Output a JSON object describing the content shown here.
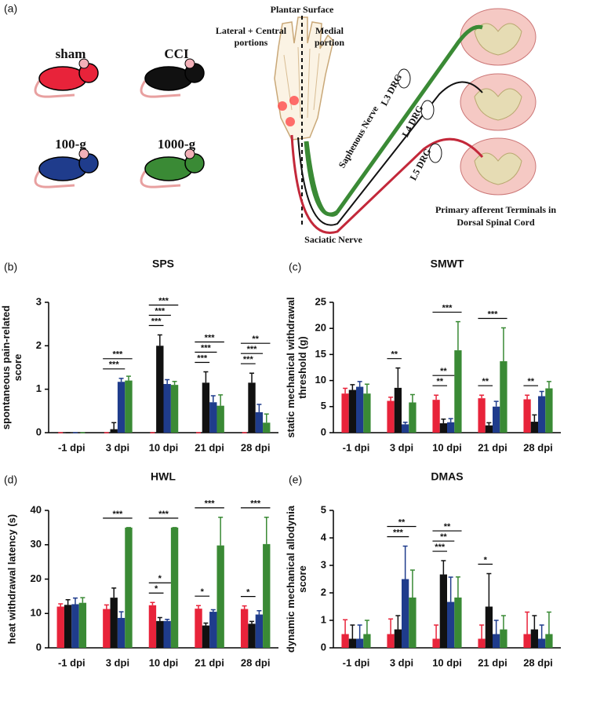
{
  "diagram": {
    "panel": "(a)",
    "plantar": "Plantar Surface",
    "lateral": [
      "Lateral + Central",
      "portions"
    ],
    "medial": [
      "Medial",
      "portion"
    ],
    "drg": [
      "L3 DRG",
      "L4 DRG",
      "L5 DRG"
    ],
    "saphenous": "Saphenous Nerve",
    "sciatic": "Saciatic Nerve",
    "terminals": [
      "Primary afferent Terminals in",
      "Dorsal Spinal Cord"
    ]
  },
  "groups": [
    {
      "name": "sham",
      "color": "#e8233a"
    },
    {
      "name": "CCI",
      "color": "#111111"
    },
    {
      "name": "100-g",
      "color": "#1f3c8c"
    },
    {
      "name": "1000-g",
      "color": "#3a8a35"
    }
  ],
  "chart_data": [
    {
      "type": "bar",
      "panel": "(b)",
      "title": "SPS",
      "ylabel": [
        "spontaneous pain-related",
        "score"
      ],
      "categories": [
        "-1 dpi",
        "3 dpi",
        "10 dpi",
        "21 dpi",
        "28 dpi"
      ],
      "series": [
        {
          "values": [
            0,
            0,
            0,
            0,
            0
          ],
          "errors": [
            0,
            0,
            0,
            0,
            0
          ]
        },
        {
          "values": [
            0,
            0.08,
            2.0,
            1.15,
            1.15
          ],
          "errors": [
            0,
            0.15,
            0.25,
            0.25,
            0.22
          ]
        },
        {
          "values": [
            0,
            1.17,
            1.12,
            0.7,
            0.47
          ],
          "errors": [
            0,
            0.08,
            0.1,
            0.15,
            0.18
          ]
        },
        {
          "values": [
            0,
            1.2,
            1.1,
            0.62,
            0.23
          ],
          "errors": [
            0,
            0.1,
            0.08,
            0.25,
            0.2
          ]
        }
      ],
      "ylim": [
        0,
        3
      ],
      "yticks": [
        0,
        1,
        2,
        3
      ],
      "annotations": [
        {
          "category": "3 dpi",
          "from": "sham",
          "to": "100-g",
          "text": "***"
        },
        {
          "category": "3 dpi",
          "from": "sham",
          "to": "1000-g",
          "text": "***"
        },
        {
          "category": "10 dpi",
          "from": "sham",
          "to": "CCI",
          "text": "***"
        },
        {
          "category": "10 dpi",
          "from": "sham",
          "to": "100-g",
          "text": "***"
        },
        {
          "category": "10 dpi",
          "from": "sham",
          "to": "1000-g",
          "text": "***"
        },
        {
          "category": "21 dpi",
          "from": "sham",
          "to": "CCI",
          "text": "***"
        },
        {
          "category": "21 dpi",
          "from": "sham",
          "to": "100-g",
          "text": "***"
        },
        {
          "category": "21 dpi",
          "from": "sham",
          "to": "1000-g",
          "text": "***"
        },
        {
          "category": "28 dpi",
          "from": "sham",
          "to": "CCI",
          "text": "***"
        },
        {
          "category": "28 dpi",
          "from": "sham",
          "to": "100-g",
          "text": "***"
        },
        {
          "category": "28 dpi",
          "from": "sham",
          "to": "1000-g",
          "text": "**"
        }
      ]
    },
    {
      "type": "bar",
      "panel": "(c)",
      "title": "SMWT",
      "ylabel": [
        "static mechanical withdrawal",
        "threshold (g)"
      ],
      "categories": [
        "-1 dpi",
        "3 dpi",
        "10 dpi",
        "21 dpi",
        "28 dpi"
      ],
      "series": [
        {
          "values": [
            7.5,
            6.1,
            6.3,
            6.6,
            6.4
          ],
          "errors": [
            1.0,
            0.7,
            0.9,
            0.6,
            0.8
          ]
        },
        {
          "values": [
            8.2,
            8.6,
            1.8,
            1.4,
            2.1
          ],
          "errors": [
            1.0,
            3.8,
            0.8,
            0.5,
            1.3
          ]
        },
        {
          "values": [
            8.8,
            1.6,
            2.0,
            5.0,
            7.0
          ],
          "errors": [
            1.0,
            0.4,
            0.7,
            1.0,
            0.9
          ]
        },
        {
          "values": [
            7.5,
            5.8,
            15.8,
            13.7,
            8.5
          ],
          "errors": [
            1.8,
            1.5,
            5.5,
            6.4,
            1.3
          ]
        }
      ],
      "ylim": [
        0,
        25
      ],
      "yticks": [
        0,
        5,
        10,
        15,
        20,
        25
      ],
      "annotations": [
        {
          "category": "3 dpi",
          "from": "sham",
          "to": "CCI",
          "text": "**"
        },
        {
          "category": "10 dpi",
          "from": "sham",
          "to": "CCI",
          "text": "**"
        },
        {
          "category": "10 dpi",
          "from": "sham",
          "to": "100-g",
          "text": "**"
        },
        {
          "category": "10 dpi",
          "from": "sham",
          "to": "1000-g",
          "text": "***"
        },
        {
          "category": "21 dpi",
          "from": "sham",
          "to": "CCI",
          "text": "**"
        },
        {
          "category": "21 dpi",
          "from": "sham",
          "to": "1000-g",
          "text": "***"
        },
        {
          "category": "28 dpi",
          "from": "sham",
          "to": "CCI",
          "text": "**"
        }
      ]
    },
    {
      "type": "bar",
      "panel": "(d)",
      "title": "HWL",
      "ylabel": [
        "heat withdrawal latency (s)"
      ],
      "categories": [
        "-1 dpi",
        "3 dpi",
        "10 dpi",
        "21 dpi",
        "28 dpi"
      ],
      "series": [
        {
          "values": [
            12,
            11.3,
            12.4,
            11.4,
            11.3
          ],
          "errors": [
            0.8,
            1.2,
            0.8,
            0.9,
            0.9
          ]
        },
        {
          "values": [
            12.5,
            14.6,
            7.8,
            6.5,
            7.0
          ],
          "errors": [
            1.5,
            2.8,
            1.0,
            0.7,
            0.7
          ]
        },
        {
          "values": [
            12.7,
            8.7,
            7.8,
            10.5,
            9.7
          ],
          "errors": [
            1.8,
            1.8,
            0.5,
            0.6,
            1.1
          ]
        },
        {
          "values": [
            13.1,
            35,
            35,
            29.8,
            30.2
          ],
          "errors": [
            1.5,
            0,
            0,
            8.2,
            7.8
          ]
        }
      ],
      "ylim": [
        0,
        40
      ],
      "yticks": [
        0,
        10,
        20,
        30,
        40
      ],
      "annotations": [
        {
          "category": "3 dpi",
          "from": "sham",
          "to": "1000-g",
          "text": "***"
        },
        {
          "category": "10 dpi",
          "from": "sham",
          "to": "CCI",
          "text": "*"
        },
        {
          "category": "10 dpi",
          "from": "sham",
          "to": "100-g",
          "text": "*"
        },
        {
          "category": "10 dpi",
          "from": "sham",
          "to": "1000-g",
          "text": "***"
        },
        {
          "category": "21 dpi",
          "from": "sham",
          "to": "CCI",
          "text": "*"
        },
        {
          "category": "21 dpi",
          "from": "sham",
          "to": "1000-g",
          "text": "***"
        },
        {
          "category": "28 dpi",
          "from": "sham",
          "to": "CCI",
          "text": "*"
        },
        {
          "category": "28 dpi",
          "from": "sham",
          "to": "1000-g",
          "text": "***"
        }
      ]
    },
    {
      "type": "bar",
      "panel": "(e)",
      "title": "DMAS",
      "ylabel": [
        "dynamic mechanical allodynia",
        "score"
      ],
      "categories": [
        "-1 dpi",
        "3 dpi",
        "10 dpi",
        "21 dpi",
        "28 dpi"
      ],
      "series": [
        {
          "values": [
            0.5,
            0.5,
            0.33,
            0.33,
            0.5
          ],
          "errors": [
            0.52,
            0.55,
            0.5,
            0.5,
            0.8
          ]
        },
        {
          "values": [
            0.33,
            0.67,
            2.67,
            1.5,
            0.67
          ],
          "errors": [
            0.5,
            0.5,
            0.5,
            1.2,
            0.5
          ]
        },
        {
          "values": [
            0.33,
            2.5,
            1.67,
            0.5,
            0.33
          ],
          "errors": [
            0.5,
            1.2,
            0.9,
            0.5,
            0.5
          ]
        },
        {
          "values": [
            0.5,
            1.83,
            1.83,
            0.67,
            0.5
          ],
          "errors": [
            0.5,
            1.0,
            0.75,
            0.5,
            0.8
          ]
        }
      ],
      "ylim": [
        0,
        5
      ],
      "yticks": [
        0,
        1,
        2,
        3,
        4,
        5
      ],
      "annotations": [
        {
          "category": "3 dpi",
          "from": "sham",
          "to": "100-g",
          "text": "***"
        },
        {
          "category": "3 dpi",
          "from": "sham",
          "to": "1000-g",
          "text": "**"
        },
        {
          "category": "10 dpi",
          "from": "sham",
          "to": "CCI",
          "text": "***"
        },
        {
          "category": "10 dpi",
          "from": "sham",
          "to": "100-g",
          "text": "**"
        },
        {
          "category": "10 dpi",
          "from": "sham",
          "to": "1000-g",
          "text": "**"
        },
        {
          "category": "21 dpi",
          "from": "sham",
          "to": "CCI",
          "text": "*"
        }
      ]
    }
  ]
}
